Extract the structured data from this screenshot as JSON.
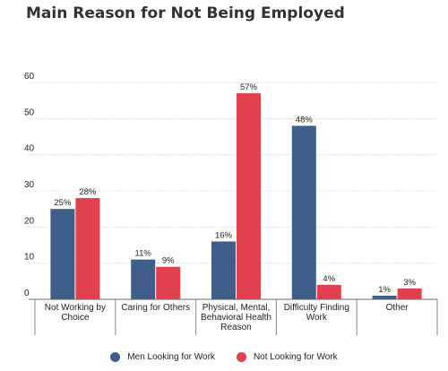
{
  "chart_data": {
    "type": "bar",
    "title": "Main Reason for Not Being Employed",
    "categories": [
      [
        "Not Working by",
        "Choice"
      ],
      [
        "Caring for Others"
      ],
      [
        "Physical, Mental,",
        "Behavioral Health",
        "Reason"
      ],
      [
        "Difficulty Finding",
        "Work"
      ],
      [
        "Other"
      ]
    ],
    "series": [
      {
        "name": "Men Looking for Work",
        "color": "#3f5f8a",
        "values": [
          25,
          11,
          16,
          48,
          1
        ]
      },
      {
        "name": "Not Looking for Work",
        "color": "#e1414d",
        "values": [
          28,
          9,
          57,
          4,
          3
        ]
      }
    ],
    "value_suffix": "%",
    "yticks": [
      0,
      10,
      20,
      30,
      40,
      50,
      60
    ],
    "ylim": [
      0,
      60
    ],
    "grid": true,
    "legend": "bottom"
  }
}
